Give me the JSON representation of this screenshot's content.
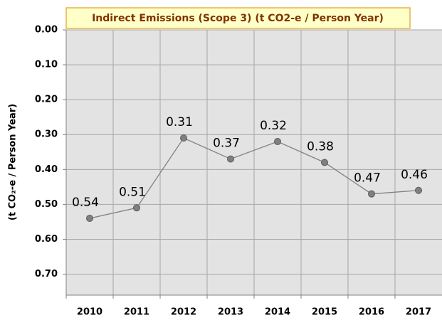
{
  "chart_data": {
    "type": "line",
    "title": "Indirect Emissions (Scope 3) (t CO2-e / Person Year)",
    "y_label": "(t CO₂-e / Person Year)",
    "categories": [
      "2010",
      "2011",
      "2012",
      "2013",
      "2014",
      "2015",
      "2016",
      "2017"
    ],
    "values": [
      0.54,
      0.51,
      0.31,
      0.37,
      0.32,
      0.38,
      0.47,
      0.46
    ],
    "color": "#808080",
    "ylim": [
      0,
      0.76
    ],
    "y_inverted": true,
    "yticks": [
      {
        "value": 0,
        "label": "0.00"
      },
      {
        "value": 0.1,
        "label": "0.10"
      },
      {
        "value": 0.2,
        "label": "0.20"
      },
      {
        "value": 0.3,
        "label": "0.30"
      },
      {
        "value": 0.4,
        "label": "0.40"
      },
      {
        "value": 0.5,
        "label": "0.50"
      },
      {
        "value": 0.6,
        "label": "0.60"
      },
      {
        "value": 0.7,
        "label": "0.70"
      }
    ],
    "grid": true
  }
}
